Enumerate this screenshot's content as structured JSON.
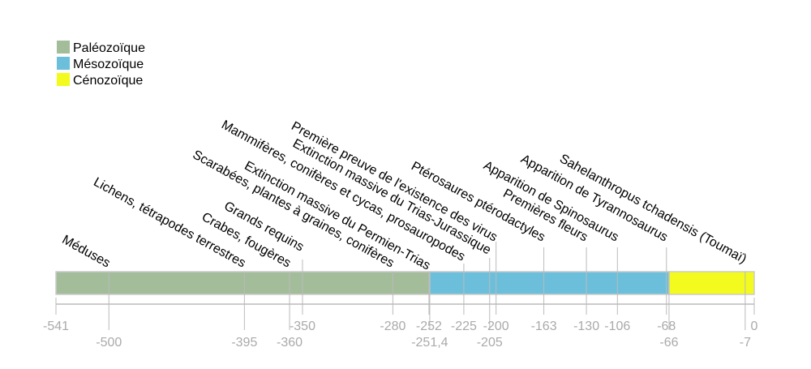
{
  "chart_data": {
    "type": "timeline",
    "xlim": [
      -541,
      0
    ],
    "legend_position": "top-left",
    "periods": [
      {
        "name": "Paléozoïque",
        "start": -541,
        "end": -251.4,
        "color": "#a3bd9a"
      },
      {
        "name": "Mésozoïque",
        "start": -251.4,
        "end": -66,
        "color": "#6bbfdb"
      },
      {
        "name": "Cénozoïque",
        "start": -66,
        "end": 0,
        "color": "#f2fa1e"
      }
    ],
    "events": [
      {
        "value": -500,
        "label": "Méduses"
      },
      {
        "value": -395,
        "label": "Lichens, tétrapodes terrestres"
      },
      {
        "value": -360,
        "label": "Crabes, fougères"
      },
      {
        "value": -350,
        "label": "Grands requins"
      },
      {
        "value": -280,
        "label": "Scarabées, plantes à graines, conifères"
      },
      {
        "value": -252,
        "label": "Extinction massive du Permien-Trias"
      },
      {
        "value": -225,
        "label": "Mammifères, conifères et cycas, prosauropodes"
      },
      {
        "value": -205,
        "label": "Extinction massive du Trias-Jurassique"
      },
      {
        "value": -200,
        "label": "Première preuve de l'existence des virus"
      },
      {
        "value": -163,
        "label": "Ptérosaures ptérodactyles"
      },
      {
        "value": -130,
        "label": "Premières fleurs"
      },
      {
        "value": -106,
        "label": "Apparition de Spinosaurus"
      },
      {
        "value": -68,
        "label": "Apparition de Tyrannosaurus"
      },
      {
        "value": -7,
        "label": "Sahelanthropus tchadensis (Toumaï)"
      }
    ],
    "ticks": [
      {
        "value": -541,
        "label": "-541",
        "row": 0
      },
      {
        "value": -500,
        "label": "-500",
        "row": 1
      },
      {
        "value": -395,
        "label": "-395",
        "row": 1
      },
      {
        "value": -360,
        "label": "-360",
        "row": 1
      },
      {
        "value": -350,
        "label": "-350",
        "row": 0
      },
      {
        "value": -280,
        "label": "-280",
        "row": 0
      },
      {
        "value": -252,
        "label": "-252",
        "row": 0
      },
      {
        "value": -251.4,
        "label": "-251,4",
        "row": 1
      },
      {
        "value": -225,
        "label": "-225",
        "row": 0
      },
      {
        "value": -205,
        "label": "-205",
        "row": 1
      },
      {
        "value": -200,
        "label": "-200",
        "row": 0
      },
      {
        "value": -163,
        "label": "-163",
        "row": 0
      },
      {
        "value": -130,
        "label": "-130",
        "row": 0
      },
      {
        "value": -106,
        "label": "-106",
        "row": 0
      },
      {
        "value": -68,
        "label": "-68",
        "row": 0
      },
      {
        "value": -66,
        "label": "-66",
        "row": 1
      },
      {
        "value": -7,
        "label": "-7",
        "row": 1
      },
      {
        "value": 0,
        "label": "0",
        "row": 0
      }
    ]
  }
}
